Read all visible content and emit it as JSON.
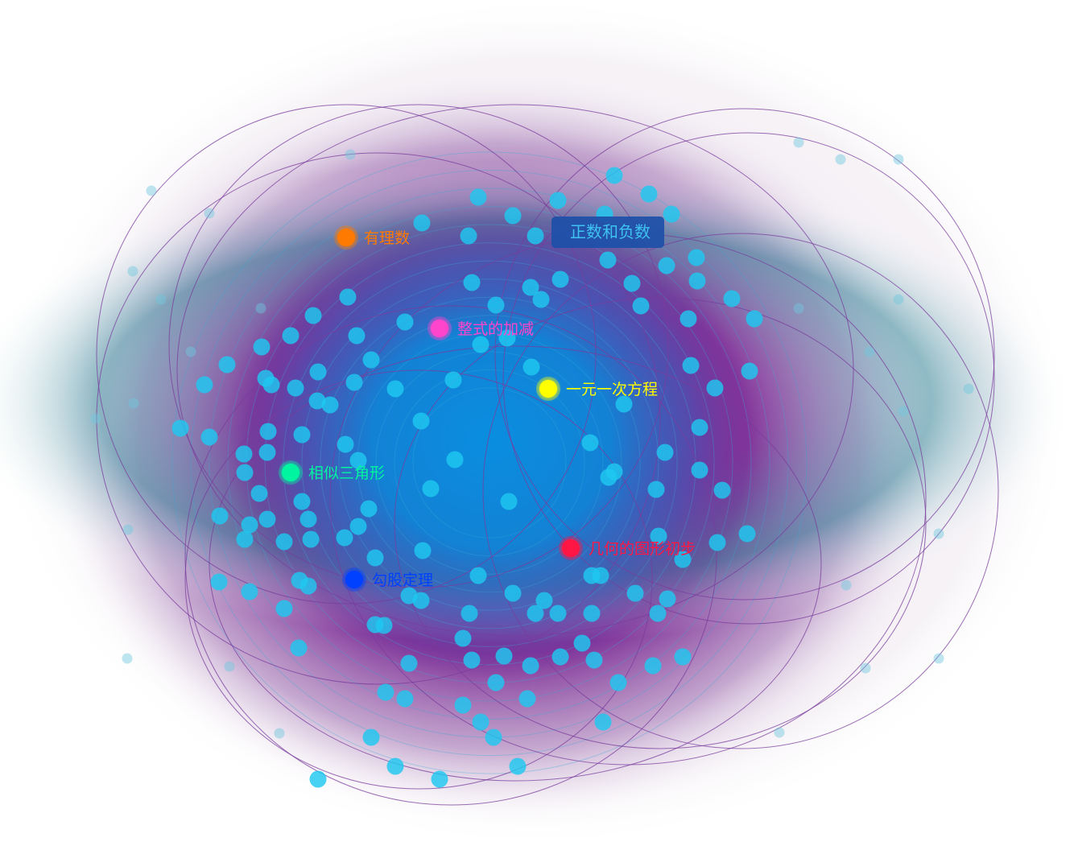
{
  "colors": {
    "background": "#ffffff",
    "halo_purple": "#7b2a95",
    "core_blue": "#0a8ee0",
    "teal_mid": "#2f8fa4",
    "dot_fill": "#1ec8f0",
    "orbit_stroke": "#7a3c9c",
    "ring_stroke": "#38a8d6",
    "tooltip_bg": "#1d4fa8",
    "tooltip_text": "#3ec2f2"
  },
  "tooltip": {
    "label": "正数和负数"
  },
  "concepts": [
    {
      "id": "rational",
      "label": "有理数",
      "color": "#ff7a00"
    },
    {
      "id": "polynomial",
      "label": "整式的加减",
      "color": "#ff44cc"
    },
    {
      "id": "linear-equation",
      "label": "一元一次方程",
      "color": "#ffff00"
    },
    {
      "id": "similar-triangles",
      "label": "相似三角形",
      "color": "#00f5a0"
    },
    {
      "id": "geometry-intro",
      "label": "几何的图形初步",
      "color": "#ff1744"
    },
    {
      "id": "pythagorean",
      "label": "勾股定理",
      "color": "#0040ff"
    }
  ]
}
